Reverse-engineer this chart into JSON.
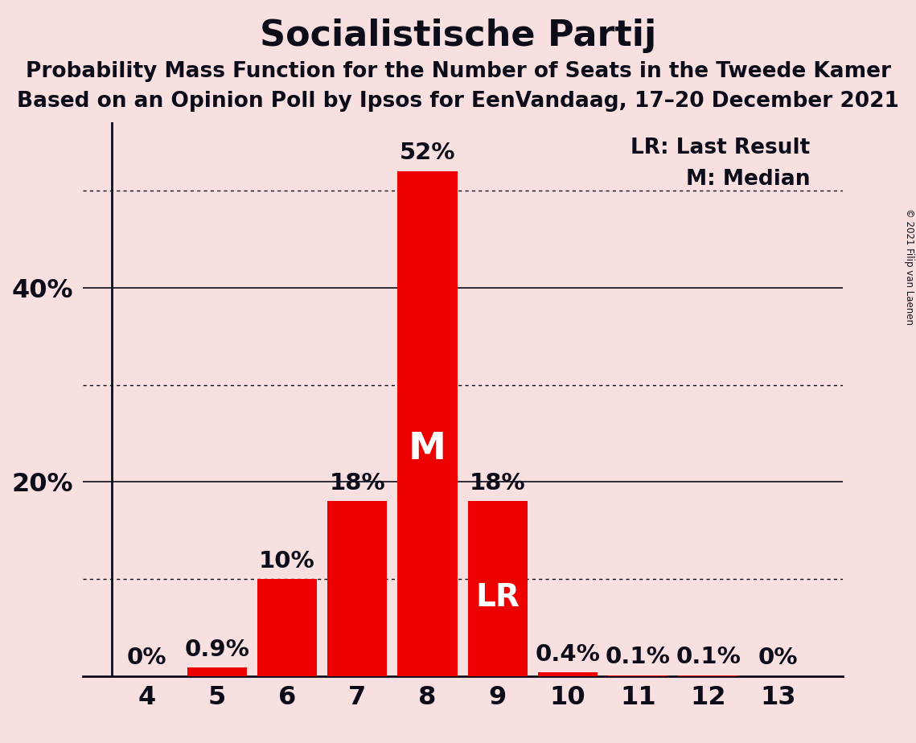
{
  "title": "Socialistische Partij",
  "subtitle1": "Probability Mass Function for the Number of Seats in the Tweede Kamer",
  "subtitle2": "Based on an Opinion Poll by Ipsos for EenVandaag, 17–20 December 2021",
  "copyright": "© 2021 Filip van Laenen",
  "categories": [
    4,
    5,
    6,
    7,
    8,
    9,
    10,
    11,
    12,
    13
  ],
  "values": [
    0.0,
    0.9,
    10.0,
    18.0,
    52.0,
    18.0,
    0.4,
    0.1,
    0.1,
    0.0
  ],
  "bar_color": "#ee0000",
  "background_color": "#f9e0e0",
  "text_color": "#0d0d1a",
  "ylim": [
    0,
    57
  ],
  "ytick_positions": [
    20,
    40
  ],
  "ytick_labels": [
    "20%",
    "40%"
  ],
  "dotted_lines": [
    10,
    30,
    50
  ],
  "solid_lines": [
    20,
    40
  ],
  "median_seat": 8,
  "last_result_seat": 9,
  "legend_lr": "LR: Last Result",
  "legend_m": "M: Median",
  "bar_labels": [
    "0%",
    "0.9%",
    "10%",
    "18%",
    "52%",
    "18%",
    "0.4%",
    "0.1%",
    "0.1%",
    "0%"
  ],
  "median_label": "M",
  "lr_label": "LR",
  "title_fontsize": 32,
  "subtitle_fontsize": 19,
  "bar_label_fontsize": 21,
  "axis_tick_fontsize": 23,
  "legend_fontsize": 19,
  "inside_label_fontsize_M": 34,
  "inside_label_fontsize_LR": 28
}
